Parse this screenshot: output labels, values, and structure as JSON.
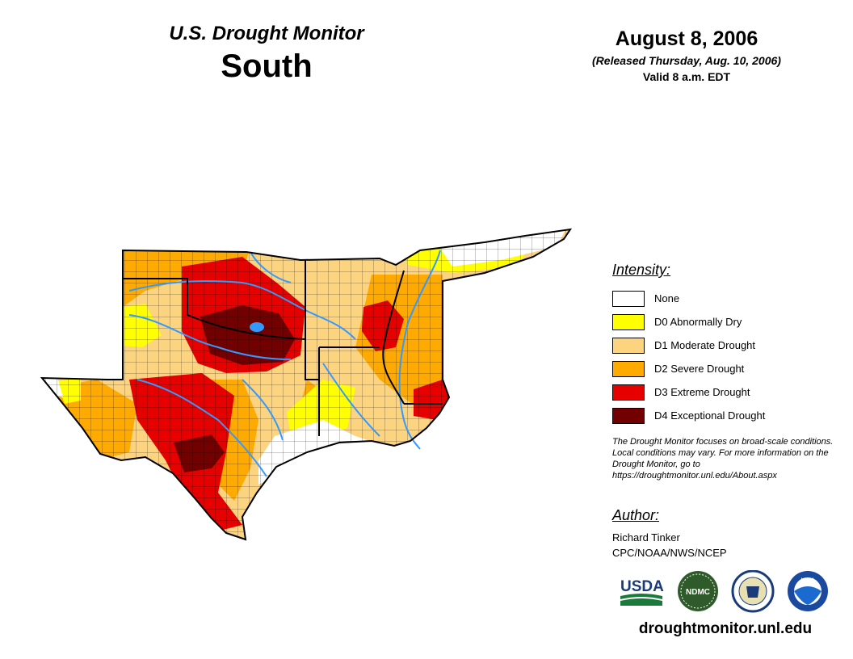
{
  "header": {
    "title": "U.S. Drought Monitor",
    "region": "South",
    "date": "August 8, 2006",
    "released": "(Released Thursday, Aug. 10, 2006)",
    "valid": "Valid 8 a.m. EDT"
  },
  "legend": {
    "title": "Intensity:",
    "items": [
      {
        "label": "None",
        "color": "#ffffff"
      },
      {
        "label": "D0 Abnormally Dry",
        "color": "#ffff00"
      },
      {
        "label": "D1 Moderate Drought",
        "color": "#fcd37f"
      },
      {
        "label": "D2 Severe Drought",
        "color": "#ffaa00"
      },
      {
        "label": "D3 Extreme Drought",
        "color": "#e60000"
      },
      {
        "label": "D4 Exceptional Drought",
        "color": "#730000"
      }
    ]
  },
  "note": "The Drought Monitor focuses on broad-scale conditions. Local conditions may vary. For more information on the Drought Monitor, go to https://droughtmonitor.unl.edu/About.aspx",
  "author": {
    "title": "Author:",
    "name": "Richard Tinker",
    "org": "CPC/NOAA/NWS/NCEP"
  },
  "logos": {
    "usda": "USDA",
    "ndmc": "NDMC",
    "noaa": "NOAA"
  },
  "website": "droughtmonitor.unl.edu",
  "colors": {
    "water": "#3399ff",
    "border": "#000000"
  }
}
